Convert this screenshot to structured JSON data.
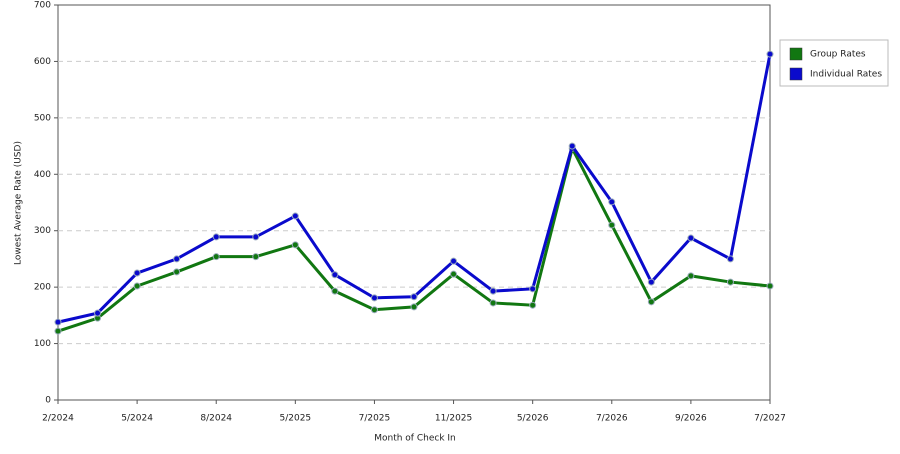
{
  "chart_data": {
    "type": "line",
    "x_label": "Month of Check In",
    "y_label": "Lowest Average Rate (USD)",
    "categories": [
      "2/2024",
      null,
      "5/2024",
      null,
      "8/2024",
      null,
      "5/2025",
      null,
      "7/2025",
      null,
      "11/2025",
      null,
      "5/2026",
      null,
      "7/2026",
      null,
      "9/2026",
      null,
      "7/2027"
    ],
    "series": [
      {
        "name": "Group Rates",
        "color": "#117711",
        "values": [
          122,
          145,
          202,
          227,
          254,
          254,
          275,
          193,
          160,
          165,
          223,
          172,
          168,
          446,
          310,
          174,
          220,
          209,
          202
        ]
      },
      {
        "name": "Individual Rates",
        "color": "#0a0acc",
        "values": [
          138,
          154,
          225,
          250,
          289,
          289,
          326,
          222,
          181,
          183,
          246,
          193,
          197,
          450,
          351,
          209,
          287,
          250,
          613
        ]
      }
    ],
    "ylim": [
      0,
      700
    ],
    "yticks": [
      0,
      100,
      200,
      300,
      400,
      500,
      600,
      700
    ],
    "grid": true,
    "legend": "right"
  }
}
